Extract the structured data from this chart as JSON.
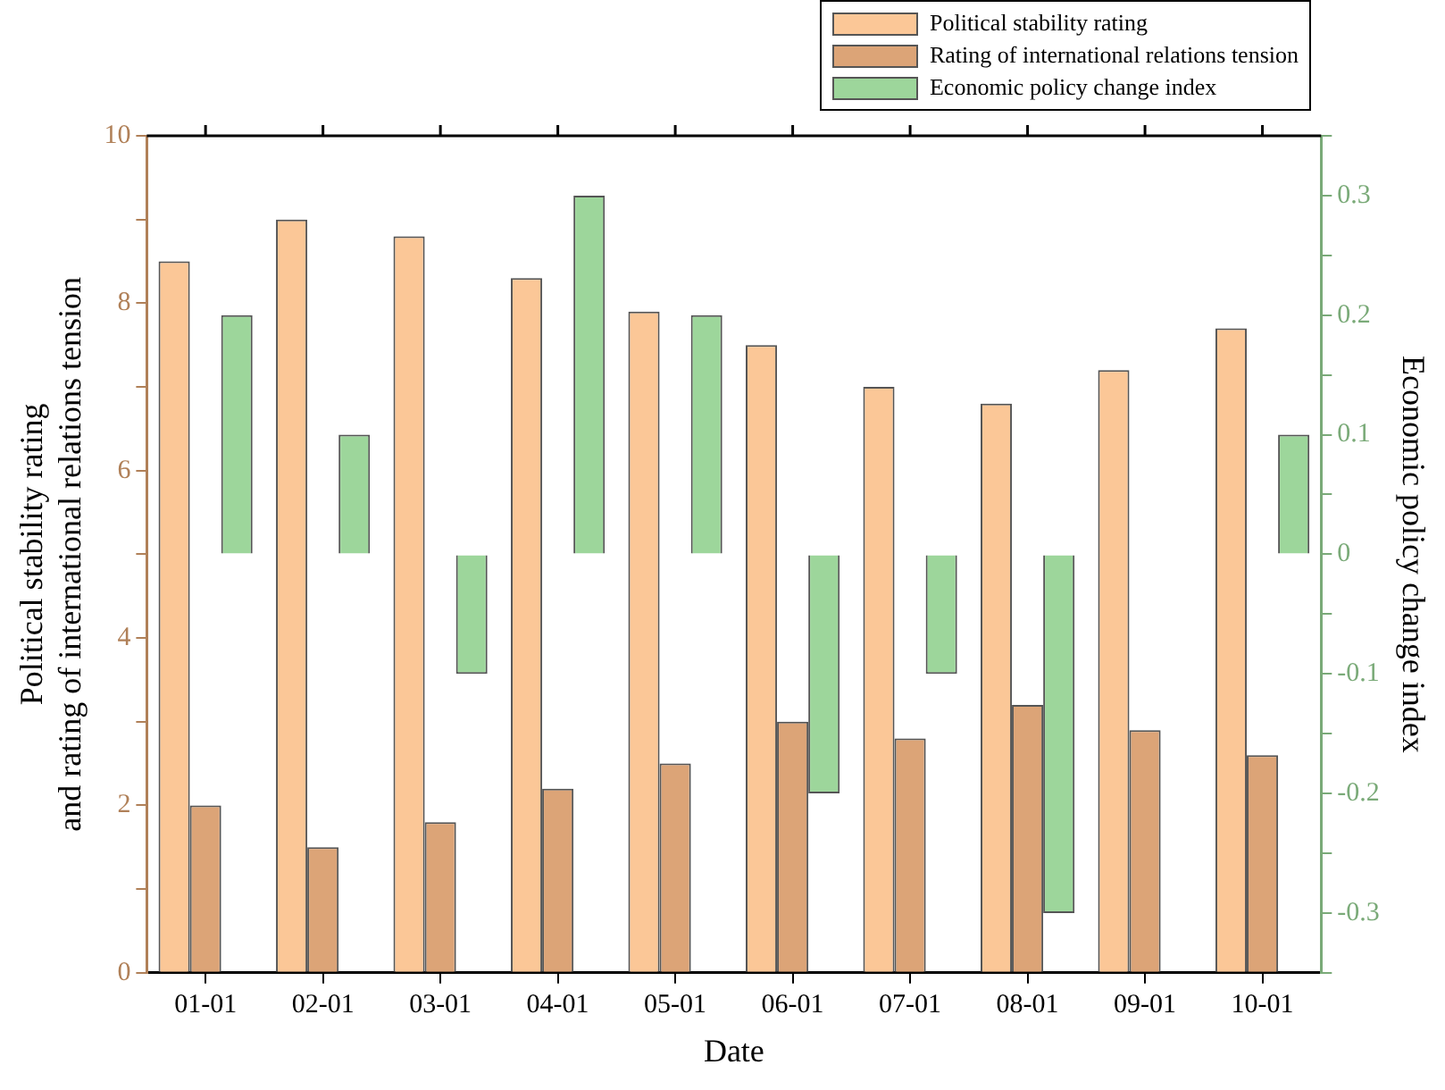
{
  "chart_data": {
    "type": "bar",
    "xlabel": "Date",
    "ylabel": "Political stability rating\nand rating of international relations tension",
    "y2label": "Economic policy change index",
    "categories": [
      "01-01",
      "02-01",
      "03-01",
      "04-01",
      "05-01",
      "06-01",
      "07-01",
      "08-01",
      "09-01",
      "10-01"
    ],
    "series": [
      {
        "name": "Political stability rating",
        "color": "#fbc797",
        "values": [
          8.5,
          9.0,
          8.8,
          8.3,
          7.9,
          7.5,
          7.0,
          6.8,
          7.2,
          7.7
        ]
      },
      {
        "name": "Rating of international relations tension",
        "color": "#dca477",
        "values": [
          2.0,
          1.5,
          1.8,
          2.2,
          2.5,
          3.0,
          2.8,
          3.2,
          2.9,
          2.6
        ]
      },
      {
        "name": "Economic policy change index",
        "color": "#9dd69b",
        "axis": "y2",
        "values": [
          0.2,
          0.1,
          -0.1,
          0.3,
          0.2,
          -0.2,
          -0.1,
          -0.3,
          null,
          0.1
        ]
      }
    ],
    "ylim": [
      0,
      10
    ],
    "yticks": [
      0,
      {
        "value": 1,
        "label": null
      },
      2,
      {
        "value": 3,
        "label": null
      },
      4,
      {
        "value": 5,
        "label": null
      },
      6,
      {
        "value": 7,
        "label": null
      },
      8,
      {
        "value": 9,
        "label": null
      },
      10
    ],
    "y2lim": [
      -0.35,
      0.35
    ],
    "y2ticks": [
      {
        "value": -0.35,
        "label": null
      },
      -0.3,
      {
        "value": -0.25,
        "label": null
      },
      -0.2,
      {
        "value": -0.15,
        "label": null
      },
      -0.1,
      {
        "value": -0.05,
        "label": null
      },
      0.0,
      {
        "value": 0.05,
        "label": null
      },
      0.1,
      {
        "value": 0.15,
        "label": null
      },
      0.2,
      {
        "value": 0.25,
        "label": null
      },
      0.3,
      {
        "value": 0.35,
        "label": null
      }
    ],
    "grid": false,
    "legend": "top right"
  }
}
